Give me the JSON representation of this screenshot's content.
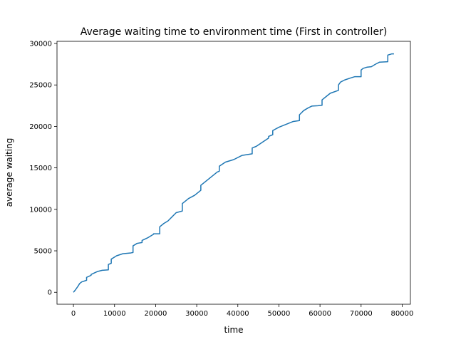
{
  "chart_data": {
    "type": "line",
    "title": "Average waiting time to environment time (First in controller)",
    "xlabel": "time",
    "ylabel": "average waiting",
    "xlim": [
      -4000,
      82000
    ],
    "ylim": [
      -1440,
      30260
    ],
    "xticks": [
      0,
      10000,
      20000,
      30000,
      40000,
      50000,
      60000,
      70000,
      80000
    ],
    "yticks": [
      0,
      5000,
      10000,
      15000,
      20000,
      25000,
      30000
    ],
    "grid": false,
    "line_color": "#1f77b4",
    "series": [
      {
        "x": [
          0,
          500,
          1200,
          1500,
          2000,
          3200,
          3200,
          4300,
          4300,
          5800,
          7000,
          8500,
          8500,
          9200,
          9200,
          10500,
          12000,
          14000,
          14500,
          14500,
          15500,
          16700,
          16700,
          18000,
          19500,
          19500,
          21000,
          21000,
          22000,
          23000,
          24000,
          25000,
          26500,
          26500,
          27500,
          28000,
          29500,
          31000,
          31000,
          32000,
          33500,
          35000,
          35500,
          35500,
          37000,
          39000,
          41000,
          43500,
          43500,
          44500,
          47500,
          47500,
          48500,
          48500,
          50000,
          53500,
          55000,
          55000,
          56000,
          57000,
          58000,
          59500,
          60500,
          60500,
          61500,
          62500,
          64500,
          64500,
          65000,
          66000,
          67500,
          68500,
          70000,
          70000,
          70500,
          71500,
          72500,
          73500,
          74500,
          76500,
          76500,
          77500,
          78000
        ],
        "y": [
          0,
          300,
          800,
          1050,
          1250,
          1450,
          1800,
          2050,
          2150,
          2500,
          2650,
          2700,
          3350,
          3500,
          4000,
          4400,
          4650,
          4750,
          4800,
          5600,
          5900,
          6000,
          6250,
          6550,
          7000,
          7050,
          7050,
          7900,
          8300,
          8600,
          9100,
          9600,
          9800,
          10700,
          11100,
          11300,
          11700,
          12300,
          12900,
          13300,
          13900,
          14500,
          14600,
          15200,
          15700,
          16000,
          16500,
          16700,
          17400,
          17600,
          18600,
          18800,
          19000,
          19500,
          19900,
          20600,
          20700,
          21400,
          21900,
          22200,
          22450,
          22500,
          22550,
          23200,
          23600,
          24000,
          24350,
          25000,
          25350,
          25600,
          25850,
          26000,
          26000,
          26800,
          27000,
          27150,
          27200,
          27500,
          27750,
          27800,
          28600,
          28750,
          28750
        ]
      }
    ]
  }
}
